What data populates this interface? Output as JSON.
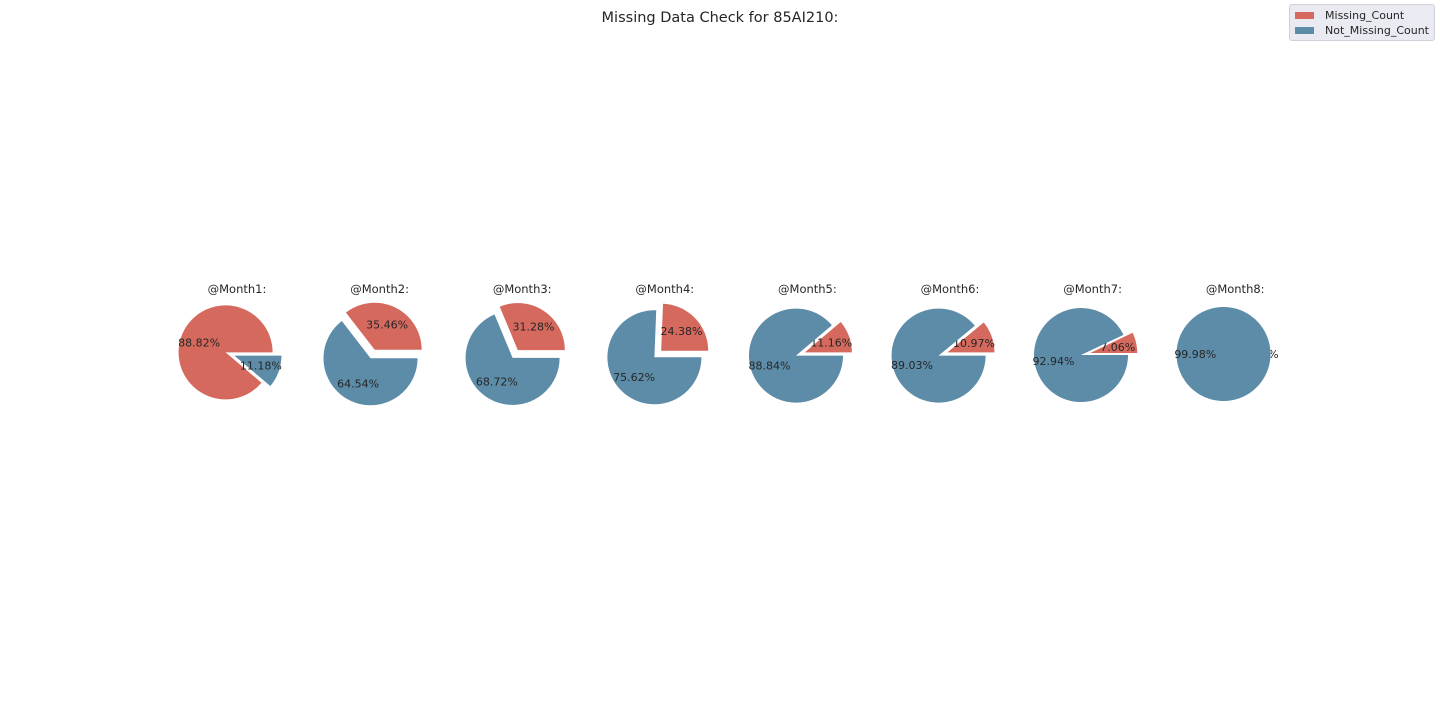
{
  "title": "Missing Data Check for 85AI210:",
  "legend": {
    "items": [
      {
        "label": "Missing_Count",
        "color": "#d5695d"
      },
      {
        "label": "Not_Missing_Count",
        "color": "#5d8ca8"
      }
    ],
    "placement": "top-right"
  },
  "chart_data": [
    {
      "type": "pie",
      "title": "@Month1:",
      "labels": [
        "Missing_Count",
        "Not_Missing_Count"
      ],
      "values": [
        88.82,
        11.18
      ],
      "value_labels": [
        "88.82%",
        "11.18%"
      ]
    },
    {
      "type": "pie",
      "title": "@Month2:",
      "labels": [
        "Missing_Count",
        "Not_Missing_Count"
      ],
      "values": [
        35.46,
        64.54
      ],
      "value_labels": [
        "35.46%",
        "64.54%"
      ]
    },
    {
      "type": "pie",
      "title": "@Month3:",
      "labels": [
        "Missing_Count",
        "Not_Missing_Count"
      ],
      "values": [
        31.28,
        68.72
      ],
      "value_labels": [
        "31.28%",
        "68.72%"
      ]
    },
    {
      "type": "pie",
      "title": "@Month4:",
      "labels": [
        "Missing_Count",
        "Not_Missing_Count"
      ],
      "values": [
        24.38,
        75.62
      ],
      "value_labels": [
        "24.38%",
        "75.62%"
      ]
    },
    {
      "type": "pie",
      "title": "@Month5:",
      "labels": [
        "Missing_Count",
        "Not_Missing_Count"
      ],
      "values": [
        11.16,
        88.84
      ],
      "value_labels": [
        "11.16%",
        "88.84%"
      ]
    },
    {
      "type": "pie",
      "title": "@Month6:",
      "labels": [
        "Missing_Count",
        "Not_Missing_Count"
      ],
      "values": [
        10.97,
        89.03
      ],
      "value_labels": [
        "10.97%",
        "89.03%"
      ]
    },
    {
      "type": "pie",
      "title": "@Month7:",
      "labels": [
        "Missing_Count",
        "Not_Missing_Count"
      ],
      "values": [
        7.06,
        92.94
      ],
      "value_labels": [
        "7.06%",
        "92.94%"
      ]
    },
    {
      "type": "pie",
      "title": "@Month8:",
      "labels": [
        "Missing_Count",
        "Not_Missing_Count"
      ],
      "values": [
        0.02,
        99.98
      ],
      "value_labels": [
        "0.02%",
        "99.98%"
      ]
    }
  ]
}
